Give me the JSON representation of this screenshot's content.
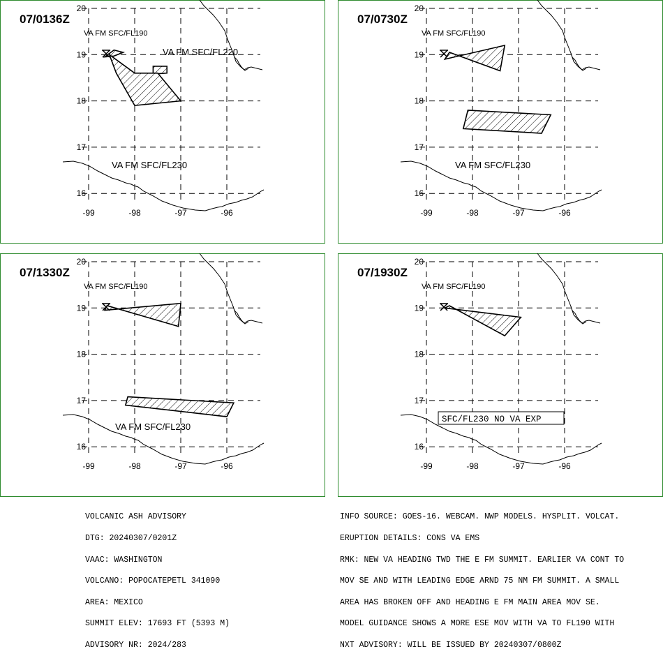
{
  "panels": [
    {
      "time": "07/0136Z",
      "labels": [
        "VA FM SFC/FL190",
        "VA FM SFC/FL220",
        "VA FM SFC/FL230"
      ],
      "areas": [
        {
          "name": "FL190",
          "points": [
            [
              -98.65,
              18.95
            ],
            [
              -98.45,
              19.1
            ],
            [
              -98.25,
              19.05
            ],
            [
              -98.45,
              18.97
            ]
          ]
        },
        {
          "name": "FL220",
          "points": [
            [
              -97.6,
              18.75
            ],
            [
              -97.3,
              18.75
            ],
            [
              -97.3,
              18.6
            ],
            [
              -97.6,
              18.58
            ]
          ]
        },
        {
          "name": "FL230",
          "points": [
            [
              -98.55,
              19.0
            ],
            [
              -98.0,
              18.6
            ],
            [
              -97.5,
              18.6
            ],
            [
              -97.0,
              18.0
            ],
            [
              -98.0,
              17.9
            ],
            [
              -98.4,
              18.6
            ]
          ]
        }
      ]
    },
    {
      "time": "07/0730Z",
      "labels": [
        "VA FM SFC/FL190",
        "VA FM SFC/FL230"
      ],
      "areas": [
        {
          "name": "FL190",
          "points": [
            [
              -98.6,
              18.9
            ],
            [
              -97.3,
              19.2
            ],
            [
              -97.4,
              18.65
            ],
            [
              -98.5,
              19.05
            ]
          ]
        },
        {
          "name": "FL230",
          "points": [
            [
              -98.1,
              17.8
            ],
            [
              -96.3,
              17.7
            ],
            [
              -96.5,
              17.3
            ],
            [
              -98.2,
              17.4
            ]
          ]
        }
      ]
    },
    {
      "time": "07/1330Z",
      "labels": [
        "VA FM SFC/FL190",
        "VA FM SFC/FL230"
      ],
      "areas": [
        {
          "name": "FL190",
          "points": [
            [
              -98.65,
              18.95
            ],
            [
              -97.0,
              19.1
            ],
            [
              -97.05,
              18.6
            ],
            [
              -98.6,
              19.05
            ]
          ]
        },
        {
          "name": "FL230",
          "points": [
            [
              -98.15,
              17.08
            ],
            [
              -95.85,
              16.95
            ],
            [
              -96.0,
              16.65
            ],
            [
              -98.2,
              16.9
            ]
          ]
        }
      ]
    },
    {
      "time": "07/1930Z",
      "labels": [
        "VA FM SFC/FL190"
      ],
      "boxed_label": "SFC/FL230 NO VA EXP",
      "areas": [
        {
          "name": "FL190",
          "points": [
            [
              -98.6,
              19.0
            ],
            [
              -96.95,
              18.8
            ],
            [
              -97.3,
              18.4
            ],
            [
              -98.5,
              19.05
            ]
          ]
        }
      ]
    }
  ],
  "axes": {
    "x_ticks": [
      "-99",
      "-98",
      "-97",
      "-96"
    ],
    "y_ticks": [
      "20",
      "19",
      "18",
      "17",
      "16"
    ]
  },
  "footer_left": [
    "VOLCANIC ASH ADVISORY",
    "DTG: 20240307/0201Z",
    "VAAC: WASHINGTON",
    "VOLCANO: POPOCATEPETL 341090",
    "AREA: MEXICO",
    "SUMMIT ELEV: 17693 FT (5393 M)",
    "ADVISORY NR: 2024/283"
  ],
  "footer_right": [
    "INFO SOURCE: GOES-16. WEBCAM. NWP MODELS. HYSPLIT. VOLCAT.",
    "ERUPTION DETAILS: CONS VA EMS",
    "RMK: NEW VA HEADING TWD THE E FM SUMMIT. EARLIER VA CONT TO",
    "MOV SE AND WITH LEADING EDGE ARND 75 NM FM SUMMIT. A SMALL",
    "AREA HAS BROKEN OFF AND HEADING E FM MAIN AREA MOV SE.",
    "MODEL GUIDANCE SHOWS A MORE ESE MOV WITH VA TO FL190 WITH",
    "NXT ADVISORY: WILL BE ISSUED BY 20240307/0800Z"
  ],
  "colors": {
    "frame": "#2e8b2e",
    "ink": "#000000"
  }
}
